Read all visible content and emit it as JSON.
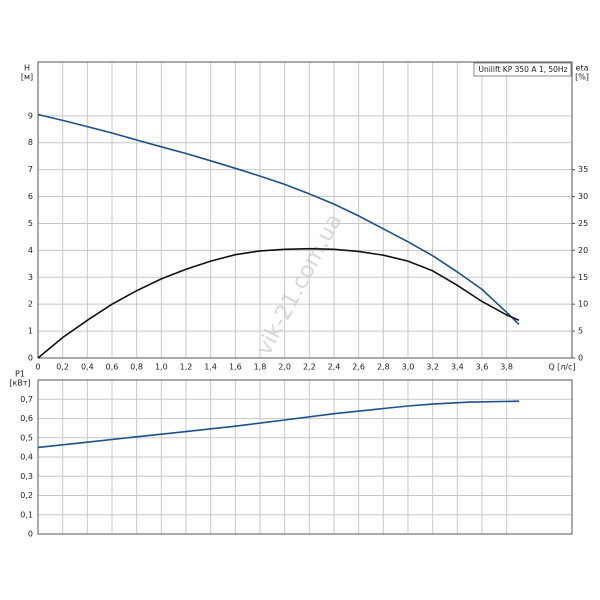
{
  "chart_data": [
    {
      "type": "line",
      "title": "Unilift KP 350 A 1, 50Hz",
      "ylabel": "H",
      "yunit": "[м]",
      "y2label": "eta",
      "y2unit": "[%]",
      "xlabel": "Q [л/с]",
      "watermark": "vik-21.com.ua",
      "x": [
        0,
        0.2,
        0.4,
        0.6,
        0.8,
        1.0,
        1.2,
        1.4,
        1.6,
        1.8,
        2.0,
        2.2,
        2.4,
        2.6,
        2.8,
        3.0,
        3.2,
        3.4,
        3.6,
        3.8,
        3.9
      ],
      "series": [
        {
          "color": "#1f4f8a",
          "values": [
            9.05,
            8.83,
            8.6,
            8.36,
            8.1,
            7.85,
            7.6,
            7.33,
            7.05,
            6.76,
            6.45,
            6.1,
            5.72,
            5.28,
            4.8,
            4.32,
            3.8,
            3.2,
            2.55,
            1.7,
            1.25
          ]
        },
        {
          "color": "#111111",
          "axis": "y2",
          "values": [
            0,
            3.8,
            7,
            10,
            12.5,
            14.7,
            16.5,
            18,
            19.2,
            19.9,
            20.2,
            20.3,
            20.2,
            19.8,
            19.1,
            18,
            16.2,
            13.5,
            10.5,
            8,
            7
          ]
        }
      ],
      "xlim": [
        0,
        4.33
      ],
      "xticks": [
        0,
        {
          "value": 0.2,
          "label": "0,2"
        },
        {
          "value": 0.4,
          "label": "0,4"
        },
        {
          "value": 0.6,
          "label": "0,6"
        },
        {
          "value": 0.8,
          "label": "0,8"
        },
        {
          "value": 1.0,
          "label": "1,0"
        },
        {
          "value": 1.2,
          "label": "1,2"
        },
        {
          "value": 1.4,
          "label": "1,4"
        },
        {
          "value": 1.6,
          "label": "1,6"
        },
        {
          "value": 1.8,
          "label": "1,8"
        },
        {
          "value": 2.0,
          "label": "2,0"
        },
        {
          "value": 2.2,
          "label": "2,2"
        },
        {
          "value": 2.4,
          "label": "2,4"
        },
        {
          "value": 2.6,
          "label": "2,6"
        },
        {
          "value": 2.8,
          "label": "2,8"
        },
        {
          "value": 3.0,
          "label": "3,0"
        },
        {
          "value": 3.2,
          "label": "3,2"
        },
        {
          "value": 3.4,
          "label": "3,4"
        },
        {
          "value": 3.6,
          "label": "3,6"
        },
        {
          "value": 3.8,
          "label": "3,8"
        }
      ],
      "ylim": [
        0,
        11
      ],
      "yticks": [
        0,
        1,
        2,
        3,
        4,
        5,
        6,
        7,
        8,
        9
      ],
      "y2lim": [
        0,
        55
      ],
      "y2ticks": [
        0,
        5,
        10,
        15,
        20,
        25,
        30,
        35
      ],
      "grid": true
    },
    {
      "type": "line",
      "ylabel": "P1",
      "yunit": "[кВт]",
      "x": [
        0,
        0.4,
        0.8,
        1.2,
        1.6,
        2.0,
        2.4,
        2.8,
        3.0,
        3.2,
        3.5,
        3.9
      ],
      "series": [
        {
          "color": "#1f4f8a",
          "values": [
            0.45,
            0.477,
            0.505,
            0.532,
            0.56,
            0.592,
            0.625,
            0.652,
            0.665,
            0.675,
            0.685,
            0.69
          ]
        }
      ],
      "xlim": [
        0,
        4.33
      ],
      "xticks": [
        0,
        0.2,
        0.4,
        0.6,
        0.8,
        1.0,
        1.2,
        1.4,
        1.6,
        1.8,
        2.0,
        2.2,
        2.4,
        2.6,
        2.8,
        3.0,
        3.2,
        3.4,
        3.6,
        3.8
      ],
      "xtick_labels": false,
      "ylim": [
        0,
        0.8
      ],
      "yticks": [
        0,
        {
          "value": 0.1,
          "label": "0,1"
        },
        {
          "value": 0.2,
          "label": "0,2"
        },
        {
          "value": 0.3,
          "label": "0,3"
        },
        {
          "value": 0.4,
          "label": "0,4"
        },
        {
          "value": 0.5,
          "label": "0,5"
        },
        {
          "value": 0.6,
          "label": "0,6"
        },
        {
          "value": 0.7,
          "label": "0,7"
        }
      ],
      "grid": true
    }
  ]
}
